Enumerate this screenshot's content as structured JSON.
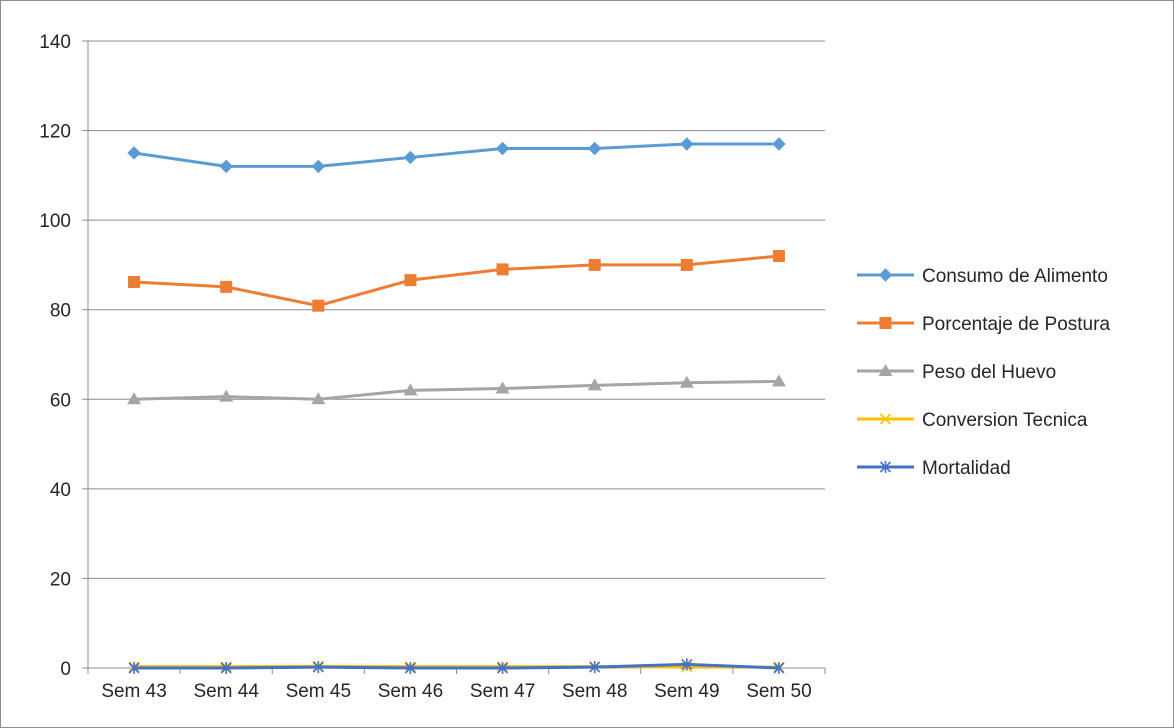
{
  "chart_data": {
    "type": "line",
    "title": "",
    "xlabel": "",
    "ylabel": "",
    "categories": [
      "Sem 43",
      "Sem 44",
      "Sem 45",
      "Sem 46",
      "Sem 47",
      "Sem 48",
      "Sem 49",
      "Sem 50"
    ],
    "ylim": [
      0,
      140
    ],
    "yticks": [
      0,
      20,
      40,
      60,
      80,
      100,
      120,
      140
    ],
    "grid": true,
    "legend_position": "right",
    "series": [
      {
        "name": "Consumo de Alimento",
        "color": "#5b9bd5",
        "marker": "diamond",
        "values": [
          115,
          112,
          112,
          114,
          116,
          116,
          117,
          117
        ]
      },
      {
        "name": "Porcentaje de Postura",
        "color": "#ed7d31",
        "marker": "square",
        "values": [
          86.2,
          85.1,
          80.9,
          86.6,
          89,
          90,
          90,
          92
        ]
      },
      {
        "name": "Peso del Huevo",
        "color": "#a5a5a5",
        "marker": "triangle",
        "values": [
          60,
          60.6,
          60,
          62,
          62.4,
          63.1,
          63.7,
          64
        ]
      },
      {
        "name": "Conversion Tecnica",
        "color": "#ffc000",
        "marker": "x",
        "values": [
          0.3,
          0.3,
          0.4,
          0.3,
          0.3,
          0.3,
          0.2,
          0.2
        ]
      },
      {
        "name": "Mortalidad",
        "color": "#4472c4",
        "marker": "star",
        "values": [
          0,
          0,
          0.2,
          0,
          0,
          0.2,
          0.8,
          0
        ]
      }
    ]
  }
}
